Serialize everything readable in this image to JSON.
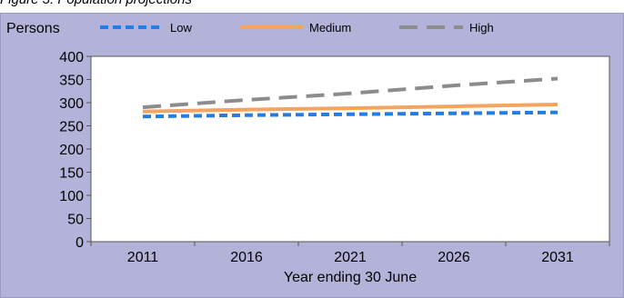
{
  "caption": "Figure 3: Population projections",
  "chart_data": {
    "type": "line",
    "ylabel": "Persons",
    "xlabel": "Year ending 30 June",
    "categories": [
      "2011",
      "2016",
      "2021",
      "2026",
      "2031"
    ],
    "ylim": [
      0,
      400
    ],
    "yticks": [
      "0",
      "50",
      "100",
      "150",
      "200",
      "250",
      "300",
      "350",
      "400"
    ],
    "series": [
      {
        "name": "Low",
        "values": [
          270,
          273,
          275,
          277,
          279
        ],
        "color": "#1f7fe6",
        "style": "dotted"
      },
      {
        "name": "Medium",
        "values": [
          281,
          285,
          288,
          292,
          296
        ],
        "color": "#f4a460",
        "style": "solid"
      },
      {
        "name": "High",
        "values": [
          290,
          306,
          320,
          337,
          352
        ],
        "color": "#8c8c8c",
        "style": "dashed"
      }
    ],
    "grid": false,
    "legend_position": "top"
  }
}
